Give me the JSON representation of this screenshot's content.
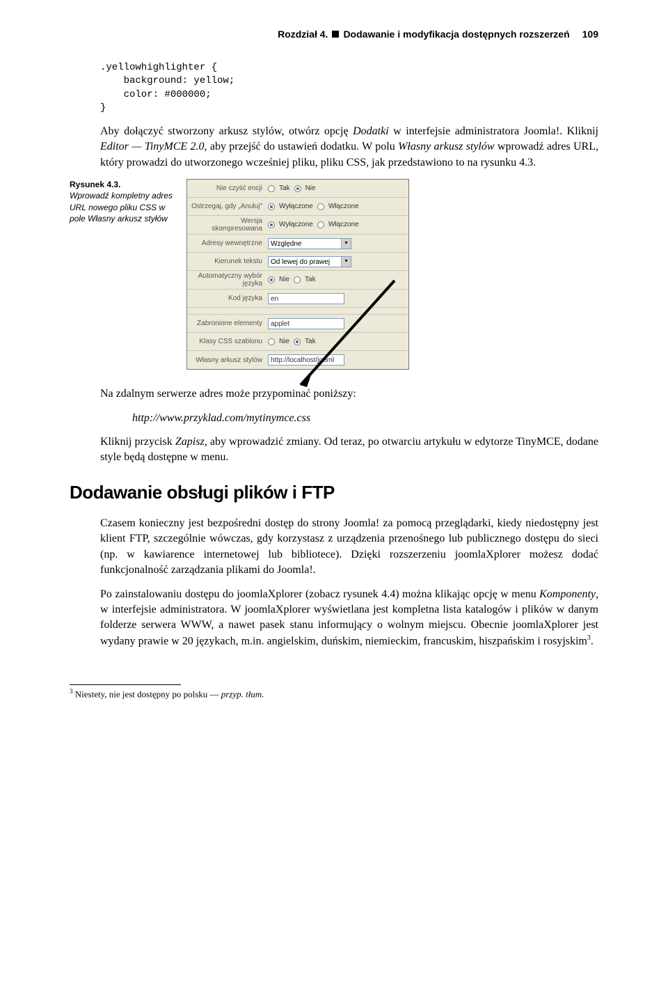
{
  "header": {
    "chapter": "Rozdział 4.",
    "title": "Dodawanie i modyfikacja dostępnych rozszerzeń",
    "page": "109"
  },
  "code_block": ".yellowhighlighter {\n    background: yellow;\n    color: #000000;\n}",
  "para1_a": "Aby dołączyć stworzony arkusz stylów, otwórz opcję ",
  "para1_i1": "Dodatki",
  "para1_b": " w interfejsie administratora Joomla!. Kliknij ",
  "para1_i2": "Editor — TinyMCE 2.0",
  "para1_c": ", aby przejść do ustawień dodatku. W polu ",
  "para1_i3": "Własny arkusz stylów",
  "para1_d": " wprowadź adres URL, który prowadzi do utworzonego wcześniej pliku, pliku CSS, jak przedstawiono to na rysunku 4.3.",
  "caption": {
    "num": "Rysunek 4.3.",
    "body": "Wprowadź kompletny adres URL nowego pliku CSS w pole Własny arkusz styłów"
  },
  "fig": {
    "rows": [
      {
        "label": "Nie czyść encji",
        "type": "radio2",
        "opts": [
          "Tak",
          "Nie"
        ],
        "sel": 1
      },
      {
        "label": "Ostrzegaj, gdy „Anuluj\"",
        "type": "radio2",
        "opts": [
          "Wyłączone",
          "Włączone"
        ],
        "sel": 0
      },
      {
        "label": "Wersja skompresowana",
        "type": "radio2",
        "opts": [
          "Wyłączone",
          "Włączone"
        ],
        "sel": 0
      },
      {
        "label": "Adresy wewnętrzne",
        "type": "select",
        "value": "Względne"
      },
      {
        "label": "Kierunek tekstu",
        "type": "select",
        "value": "Od lewej do prawej"
      },
      {
        "label": "Automatyczny wybór języka",
        "type": "radio2",
        "opts": [
          "Nie",
          "Tak"
        ],
        "sel": 0
      },
      {
        "label": "Kod języka",
        "type": "text",
        "value": "en"
      },
      {
        "label": "Zabronione elementy",
        "type": "text",
        "value": "applet"
      },
      {
        "label": "Klasy CSS szablonu",
        "type": "radio2",
        "opts": [
          "Nie",
          "Tak"
        ],
        "sel": 1
      },
      {
        "label": "Własny arkusz stylów",
        "type": "text",
        "value": "http://localhost/jooml"
      }
    ]
  },
  "para2": "Na zdalnym serwerze adres może przypominać poniższy:",
  "url_example": "http://www.przyklad.com/mytinymce.css",
  "para3_a": "Kliknij przycisk ",
  "para3_i1": "Zapisz",
  "para3_b": ", aby wprowadzić zmiany. Od teraz, po otwarciu artykułu w edytorze TinyMCE, dodane style będą dostępne w menu.",
  "section_heading": "Dodawanie obsługi plików i FTP",
  "para4": "Czasem konieczny jest bezpośredni dostęp do strony Joomla! za pomocą przeglądarki, kiedy niedostępny jest klient FTP, szczególnie wówczas, gdy korzystasz z urządzenia przenośnego lub publicznego dostępu do sieci (np. w kawiarence internetowej lub bibliotece). Dzięki rozszerzeniu joomlaXplorer możesz dodać funkcjonalność zarządzania plikami do Joomla!.",
  "para5_a": "Po zainstalowaniu dostępu do joomlaXplorer (zobacz rysunek 4.4) można klikając opcję w menu ",
  "para5_i1": "Komponenty",
  "para5_b": ", w interfejsie administratora. W joomlaXplorer wyświetlana jest kompletna lista katalogów i plików w danym folderze serwera WWW, a nawet pasek stanu informujący o wolnym miejscu. Obecnie joomlaXplorer jest wydany prawie w 20 językach, m.in. angielskim, duńskim, niemieckim, francuskim, hiszpańskim i rosyjskim",
  "para5_sup": "3",
  "para5_c": ".",
  "footnote": {
    "num": "3",
    "text_a": " Niestety, nie jest dostępny po polsku — ",
    "text_i": "przyp. tłum."
  }
}
